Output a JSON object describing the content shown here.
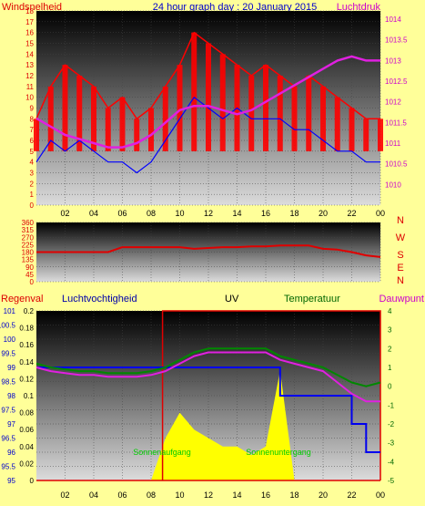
{
  "header": {
    "left_label": "Windsnelheid",
    "title": "24 hour graph day : 20 January 2015",
    "right_label": "Luchtdruk"
  },
  "bottom_header": {
    "rain_label": "Regenval",
    "humidity_label": "Luchtvochtigheid",
    "uv_label": "UV",
    "temp_label": "Temperatuur",
    "dew_label": "Dauwpunt",
    "sunrise_label": "Sonnenaufgang",
    "sunset_label": "Sonnenuntergang"
  },
  "colors": {
    "page_bg": "#ffff99",
    "wind_gust": "#ff0000",
    "wind_avg": "#0000ff",
    "pressure": "#e020e0",
    "direction": "#e00000",
    "humidity": "#0000ee",
    "temperature": "#008800",
    "dewpoint": "#e020e0",
    "uv": "#ffff00",
    "rain": "#e00000",
    "axis_red": "#dd0000",
    "axis_pink": "#cc00cc",
    "axis_green": "#006600",
    "axis_blue": "#0000cc",
    "sun_label": "#00cc00"
  },
  "chart_data": [
    {
      "type": "line",
      "id": "wind_pressure",
      "title": "24 hour graph day : 20 January 2015",
      "x_ticks": [
        "02",
        "04",
        "06",
        "08",
        "10",
        "12",
        "14",
        "16",
        "18",
        "20",
        "22",
        "00"
      ],
      "x_hours": [
        0,
        1,
        2,
        3,
        4,
        5,
        6,
        7,
        8,
        9,
        10,
        11,
        12,
        13,
        14,
        15,
        16,
        17,
        18,
        19,
        20,
        21,
        22,
        23,
        24
      ],
      "left_axis": {
        "label": "Windsnelheid",
        "range": [
          0,
          18
        ],
        "ticks": [
          0,
          1,
          2,
          3,
          4,
          5,
          6,
          7,
          8,
          9,
          10,
          11,
          12,
          13,
          14,
          15,
          16,
          17,
          18
        ]
      },
      "right_axis": {
        "label": "Luchtdruk",
        "range": [
          1009.5,
          1014.2
        ],
        "ticks": [
          "1010",
          "1010.5",
          "1011",
          "1011.5",
          "1012",
          "1012.5",
          "1013",
          "1013.5",
          "1014"
        ]
      },
      "series": [
        {
          "name": "Windsnelheid",
          "axis": "left",
          "values": [
            8,
            11,
            13,
            12,
            11,
            9,
            10,
            8,
            9,
            11,
            13,
            16,
            15,
            14,
            13,
            12,
            13,
            12,
            11,
            12,
            11,
            10,
            9,
            8,
            8
          ]
        },
        {
          "name": "Windsnelheid",
          "axis": "left",
          "values": [
            4,
            6,
            5,
            6,
            5,
            4,
            4,
            3,
            4,
            6,
            8,
            10,
            9,
            8,
            9,
            8,
            8,
            8,
            7,
            7,
            6,
            5,
            5,
            4,
            4
          ]
        },
        {
          "name": "Luchtdruk",
          "axis": "right",
          "values": [
            1011.6,
            1011.4,
            1011.2,
            1011.1,
            1011.0,
            1010.9,
            1010.9,
            1011.0,
            1011.2,
            1011.5,
            1011.8,
            1011.9,
            1011.9,
            1011.8,
            1011.7,
            1011.8,
            1012.0,
            1012.2,
            1012.4,
            1012.6,
            1012.8,
            1013.0,
            1013.1,
            1013.0,
            1013.0
          ]
        }
      ]
    },
    {
      "type": "line",
      "id": "wind_direction",
      "y_axis": {
        "ticks": [
          0,
          45,
          90,
          135,
          180,
          225,
          270,
          315,
          360
        ],
        "range": [
          0,
          360
        ]
      },
      "compass": [
        "N",
        "W",
        "S",
        "E",
        "N"
      ],
      "series": [
        {
          "name": "",
          "values": [
            180,
            180,
            180,
            180,
            180,
            180,
            210,
            210,
            210,
            210,
            210,
            200,
            205,
            210,
            210,
            215,
            215,
            220,
            220,
            220,
            200,
            195,
            180,
            160,
            150
          ]
        }
      ]
    },
    {
      "type": "line",
      "id": "rain_humidity_uv_temp",
      "humidity_axis": {
        "label": "Luchtvochtigheid",
        "range": [
          95,
          101
        ],
        "ticks": [
          "95",
          "95.5",
          "96",
          "96.5",
          "97",
          "97.5",
          "98",
          "98.5",
          "99",
          "99.5",
          "100",
          "100.5",
          "101"
        ]
      },
      "uv_axis": {
        "label": "UV",
        "range": [
          0,
          0.2
        ],
        "ticks": [
          "0",
          "0.02",
          "0.04",
          "0.06",
          "0.08",
          "0.1",
          "0.12",
          "0.14",
          "0.16",
          "0.18",
          "0.2"
        ]
      },
      "temp_axis": {
        "label": "Temperatuur",
        "range": [
          -5,
          4
        ],
        "ticks": [
          "-5",
          "-4",
          "-3",
          "-2",
          "-1",
          "0",
          "1",
          "2",
          "3",
          "4"
        ]
      },
      "annotations": [
        "Sonnenaufgang",
        "Sonnenuntergang"
      ],
      "series": [
        {
          "name": "Luchtvochtigheid",
          "values": [
            99,
            99,
            99,
            99,
            99,
            99,
            99,
            99,
            99,
            99,
            99,
            99,
            99,
            99,
            99,
            99,
            99,
            98,
            98,
            98,
            98,
            98,
            97,
            96,
            96
          ]
        },
        {
          "name": "Temperatuur",
          "values": [
            1.2,
            1.0,
            0.9,
            0.8,
            0.8,
            0.7,
            0.7,
            0.7,
            0.8,
            1.0,
            1.4,
            1.8,
            2.0,
            2.0,
            2.0,
            2.0,
            2.0,
            1.6,
            1.4,
            1.2,
            1.0,
            0.6,
            0.2,
            0.0,
            0.2
          ]
        },
        {
          "name": "Dauwpunt",
          "values": [
            1.0,
            0.8,
            0.7,
            0.6,
            0.6,
            0.5,
            0.5,
            0.5,
            0.6,
            0.8,
            1.2,
            1.6,
            1.8,
            1.8,
            1.8,
            1.8,
            1.8,
            1.4,
            1.2,
            1.0,
            0.8,
            0.2,
            -0.4,
            -0.8,
            -0.8
          ]
        },
        {
          "name": "UV",
          "values": [
            0,
            0,
            0,
            0,
            0,
            0,
            0,
            0,
            0,
            0.05,
            0.08,
            0.06,
            0.05,
            0.04,
            0.04,
            0.03,
            0.04,
            0.13,
            0,
            0,
            0,
            0,
            0,
            0,
            0
          ]
        }
      ]
    }
  ]
}
